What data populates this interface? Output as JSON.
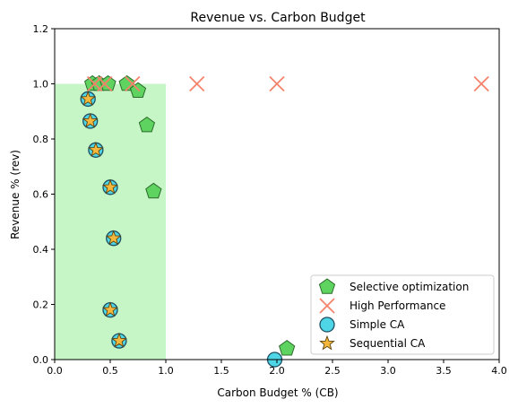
{
  "chart_data": {
    "type": "scatter",
    "title": "Revenue vs. Carbon Budget",
    "xlabel": "Carbon Budget % (CB)",
    "ylabel": "Revenue % (rev)",
    "xlim": [
      0.0,
      4.0
    ],
    "ylim": [
      0.0,
      1.2
    ],
    "xticks": [
      "0.0",
      "0.5",
      "1.0",
      "1.5",
      "2.0",
      "2.5",
      "3.0",
      "3.5",
      "4.0"
    ],
    "yticks": [
      "0.0",
      "0.2",
      "0.4",
      "0.6",
      "0.8",
      "1.0",
      "1.2"
    ],
    "grid": false,
    "legend_position": "lower-right",
    "shaded_region": {
      "x": [
        0.0,
        1.0
      ],
      "y": [
        0.0,
        1.0
      ],
      "color": "#c6f5c6"
    },
    "series": [
      {
        "name": "Selective optimization",
        "marker": "pentagon",
        "color": "#5fd35f",
        "x": [
          0.34,
          0.4,
          0.48,
          0.65,
          0.75,
          0.83,
          0.89,
          2.09
        ],
        "y": [
          1.0,
          1.0,
          1.0,
          1.0,
          0.975,
          0.85,
          0.61,
          0.04
        ]
      },
      {
        "name": "High Performance",
        "marker": "x",
        "color": "#f5826a",
        "x": [
          0.36,
          0.45,
          0.7,
          1.28,
          2.0,
          3.84
        ],
        "y": [
          1.0,
          1.0,
          1.0,
          1.0,
          1.0,
          1.0
        ]
      },
      {
        "name": "Simple CA",
        "marker": "circle",
        "color": "#4fd6e6",
        "x": [
          0.3,
          0.32,
          0.37,
          0.5,
          0.53,
          0.5,
          0.58,
          1.98
        ],
        "y": [
          0.945,
          0.865,
          0.76,
          0.625,
          0.44,
          0.18,
          0.068,
          0.0
        ]
      },
      {
        "name": "Sequential CA",
        "marker": "star",
        "color": "#f5b83d",
        "x": [
          0.3,
          0.32,
          0.37,
          0.5,
          0.53,
          0.5,
          0.58
        ],
        "y": [
          0.945,
          0.865,
          0.76,
          0.625,
          0.44,
          0.18,
          0.068
        ]
      }
    ]
  }
}
